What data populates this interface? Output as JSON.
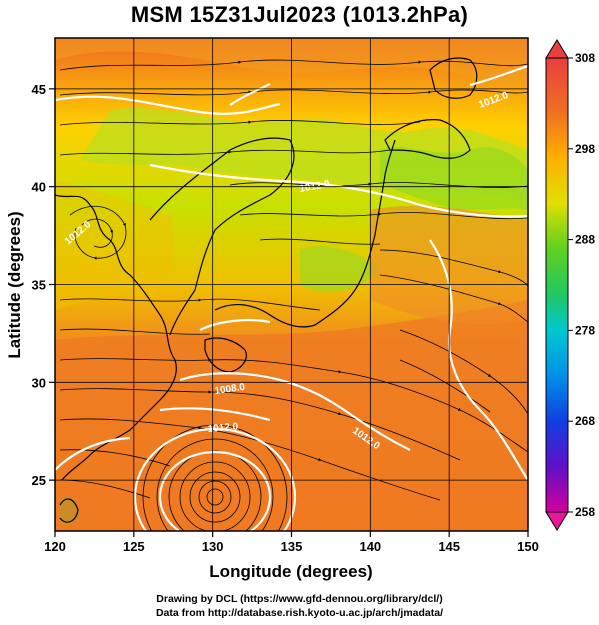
{
  "title": "MSM 15Z31Jul2023 (1013.2hPa)",
  "map": {
    "xlabel": "Longitude (degrees)",
    "ylabel": "Latitude  (degrees)",
    "lon_range": [
      120,
      150
    ],
    "lat_range": [
      22.4,
      47.6
    ],
    "lon_ticks": [
      120,
      125,
      130,
      135,
      140,
      145,
      150
    ],
    "lat_ticks": [
      25,
      30,
      35,
      40,
      45
    ],
    "grid": true,
    "field": "temperature (K) with streamlines and white isobar contours"
  },
  "colorbar": {
    "min": 258,
    "max": 308,
    "ticks": [
      308,
      298,
      288,
      278,
      268,
      258
    ],
    "colors": [
      "#d4009c",
      "#9010c8",
      "#2020e0",
      "#0088e8",
      "#00c8d8",
      "#20c860",
      "#60d020",
      "#c8e000",
      "#ffd000",
      "#ffa020",
      "#f07020",
      "#e84040"
    ]
  },
  "contour_labels": [
    "1012.0",
    "1008.0",
    "1012.0",
    "1012.0",
    "1012.0",
    "1012.0"
  ],
  "credits": {
    "line1": "Drawing by DCL (https://www.gfd-dennou.org/library/dcl/)",
    "line2": "Data from http://database.rish.kyoto-u.ac.jp/arch/jmadata/"
  }
}
